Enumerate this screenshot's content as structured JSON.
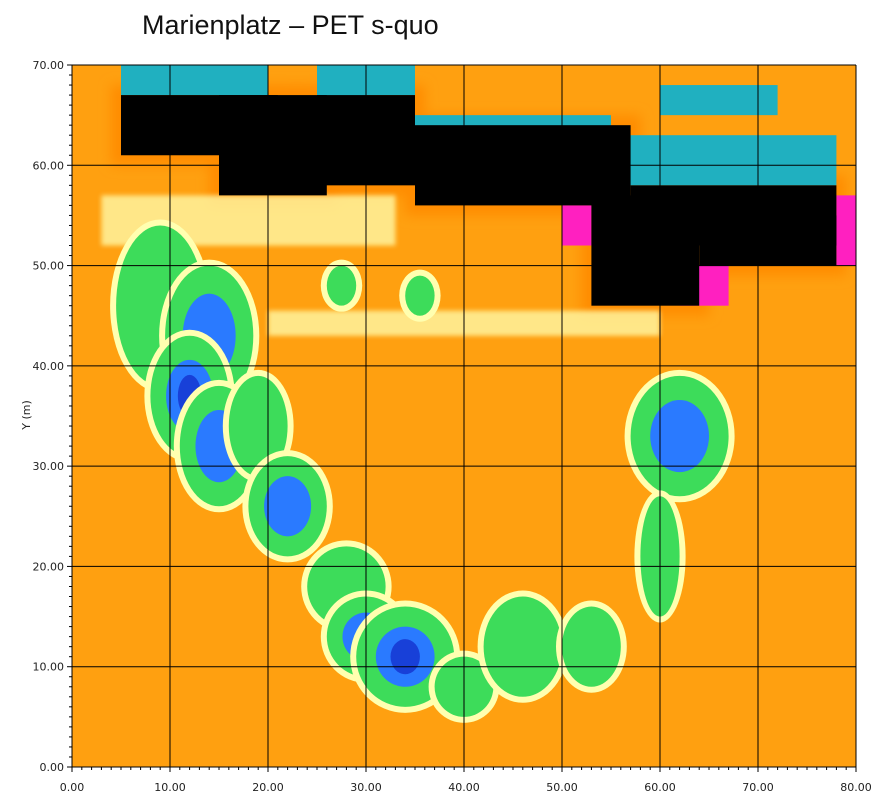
{
  "title": "Marienplatz – PET s-quo",
  "chart_data": {
    "type": "heatmap",
    "title": "Marienplatz – PET s-quo",
    "xlabel": "",
    "ylabel": "Y (m)",
    "xlim": [
      0,
      80
    ],
    "ylim": [
      0,
      70
    ],
    "x_ticks": [
      "0.00",
      "10.00",
      "20.00",
      "30.00",
      "40.00",
      "50.00",
      "60.00",
      "70.00",
      "80.00"
    ],
    "y_ticks": [
      "0.00",
      "10.00",
      "20.00",
      "30.00",
      "40.00",
      "50.00",
      "60.00",
      "70.00"
    ],
    "grid": true,
    "colors": {
      "hot": "#ff8c00",
      "warm": "#ffa010",
      "mild": "#ffd040",
      "pale": "#ffffb0",
      "green": "#3ddc5a",
      "blue": "#2a7aff",
      "deepblue": "#1840d8",
      "teal": "#20b0c0",
      "magenta": "#ff20c0",
      "building": "#000000"
    },
    "buildings": [
      [
        5,
        61,
        16,
        6
      ],
      [
        15,
        57,
        11,
        10
      ],
      [
        25,
        58,
        10,
        9
      ],
      [
        35,
        56,
        22,
        8
      ],
      [
        53,
        46,
        11,
        11
      ],
      [
        57,
        52,
        21,
        6
      ],
      [
        64,
        50,
        14,
        5
      ]
    ],
    "shade_zones": [
      [
        5,
        67,
        15,
        3
      ],
      [
        25,
        64,
        5,
        3
      ],
      [
        25,
        67,
        10,
        3
      ],
      [
        35,
        60,
        20,
        5
      ],
      [
        55,
        58,
        23,
        5
      ],
      [
        60,
        65,
        12,
        3
      ]
    ],
    "hot_zones": [
      [
        50,
        52,
        3,
        4
      ],
      [
        62,
        46,
        5,
        4
      ],
      [
        78,
        50,
        2,
        7
      ]
    ],
    "tree_groups": [
      {
        "x": 9,
        "y": 46,
        "rx": 4.5,
        "ry": 8,
        "core": 0
      },
      {
        "x": 14,
        "y": 43,
        "rx": 4.5,
        "ry": 7,
        "core": 1
      },
      {
        "x": 12,
        "y": 37,
        "rx": 4,
        "ry": 6,
        "core": 2
      },
      {
        "x": 15,
        "y": 32,
        "rx": 4,
        "ry": 6,
        "core": 1
      },
      {
        "x": 19,
        "y": 34,
        "rx": 3,
        "ry": 5,
        "core": 0
      },
      {
        "x": 22,
        "y": 26,
        "rx": 4,
        "ry": 5,
        "core": 1
      },
      {
        "x": 28,
        "y": 18,
        "rx": 4,
        "ry": 4,
        "core": 0
      },
      {
        "x": 30,
        "y": 13,
        "rx": 4,
        "ry": 4,
        "core": 1
      },
      {
        "x": 34,
        "y": 11,
        "rx": 5,
        "ry": 5,
        "core": 2
      },
      {
        "x": 40,
        "y": 8,
        "rx": 3,
        "ry": 3,
        "core": 0
      },
      {
        "x": 46,
        "y": 12,
        "rx": 4,
        "ry": 5,
        "core": 0
      },
      {
        "x": 53,
        "y": 12,
        "rx": 3,
        "ry": 4,
        "core": 0
      },
      {
        "x": 62,
        "y": 33,
        "rx": 5,
        "ry": 6,
        "core": 1
      },
      {
        "x": 60,
        "y": 21,
        "rx": 2,
        "ry": 6,
        "core": 0
      },
      {
        "x": 27.5,
        "y": 48,
        "rx": 1.5,
        "ry": 2,
        "core": 0
      },
      {
        "x": 35.5,
        "y": 47,
        "rx": 1.5,
        "ry": 2,
        "core": 0
      }
    ]
  }
}
